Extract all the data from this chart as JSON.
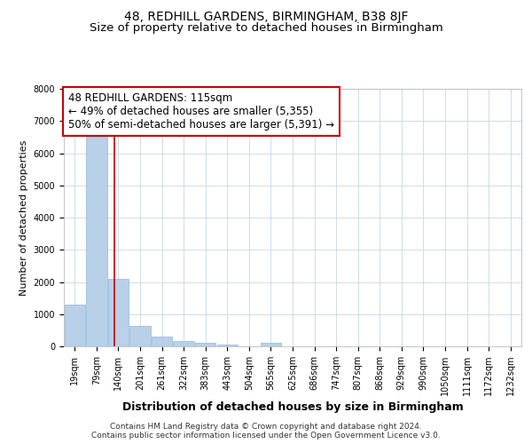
{
  "title": "48, REDHILL GARDENS, BIRMINGHAM, B38 8JF",
  "subtitle": "Size of property relative to detached houses in Birmingham",
  "xlabel": "Distribution of detached houses by size in Birmingham",
  "ylabel": "Number of detached properties",
  "categories": [
    "19sqm",
    "79sqm",
    "140sqm",
    "201sqm",
    "261sqm",
    "322sqm",
    "383sqm",
    "443sqm",
    "504sqm",
    "565sqm",
    "625sqm",
    "686sqm",
    "747sqm",
    "807sqm",
    "868sqm",
    "929sqm",
    "990sqm",
    "1050sqm",
    "1111sqm",
    "1172sqm",
    "1232sqm"
  ],
  "values": [
    1300,
    6500,
    2100,
    625,
    305,
    155,
    100,
    50,
    0,
    100,
    0,
    0,
    0,
    0,
    0,
    0,
    0,
    0,
    0,
    0,
    0
  ],
  "bar_color": "#b8d0e8",
  "bar_edge_color": "#90b8d8",
  "vline_x_idx": 1.82,
  "vline_color": "#cc0000",
  "annotation_text": "48 REDHILL GARDENS: 115sqm\n← 49% of detached houses are smaller (5,355)\n50% of semi-detached houses are larger (5,391) →",
  "annotation_box_color": "#ffffff",
  "annotation_box_edge": "#cc0000",
  "ylim": [
    0,
    8000
  ],
  "yticks": [
    0,
    1000,
    2000,
    3000,
    4000,
    5000,
    6000,
    7000,
    8000
  ],
  "background_color": "#ffffff",
  "grid_color": "#d0dce8",
  "footer_text": "Contains HM Land Registry data © Crown copyright and database right 2024.\nContains public sector information licensed under the Open Government Licence v3.0.",
  "title_fontsize": 10,
  "subtitle_fontsize": 9.5,
  "xlabel_fontsize": 9,
  "ylabel_fontsize": 8,
  "tick_fontsize": 7,
  "annotation_fontsize": 8.5,
  "footer_fontsize": 6.5
}
